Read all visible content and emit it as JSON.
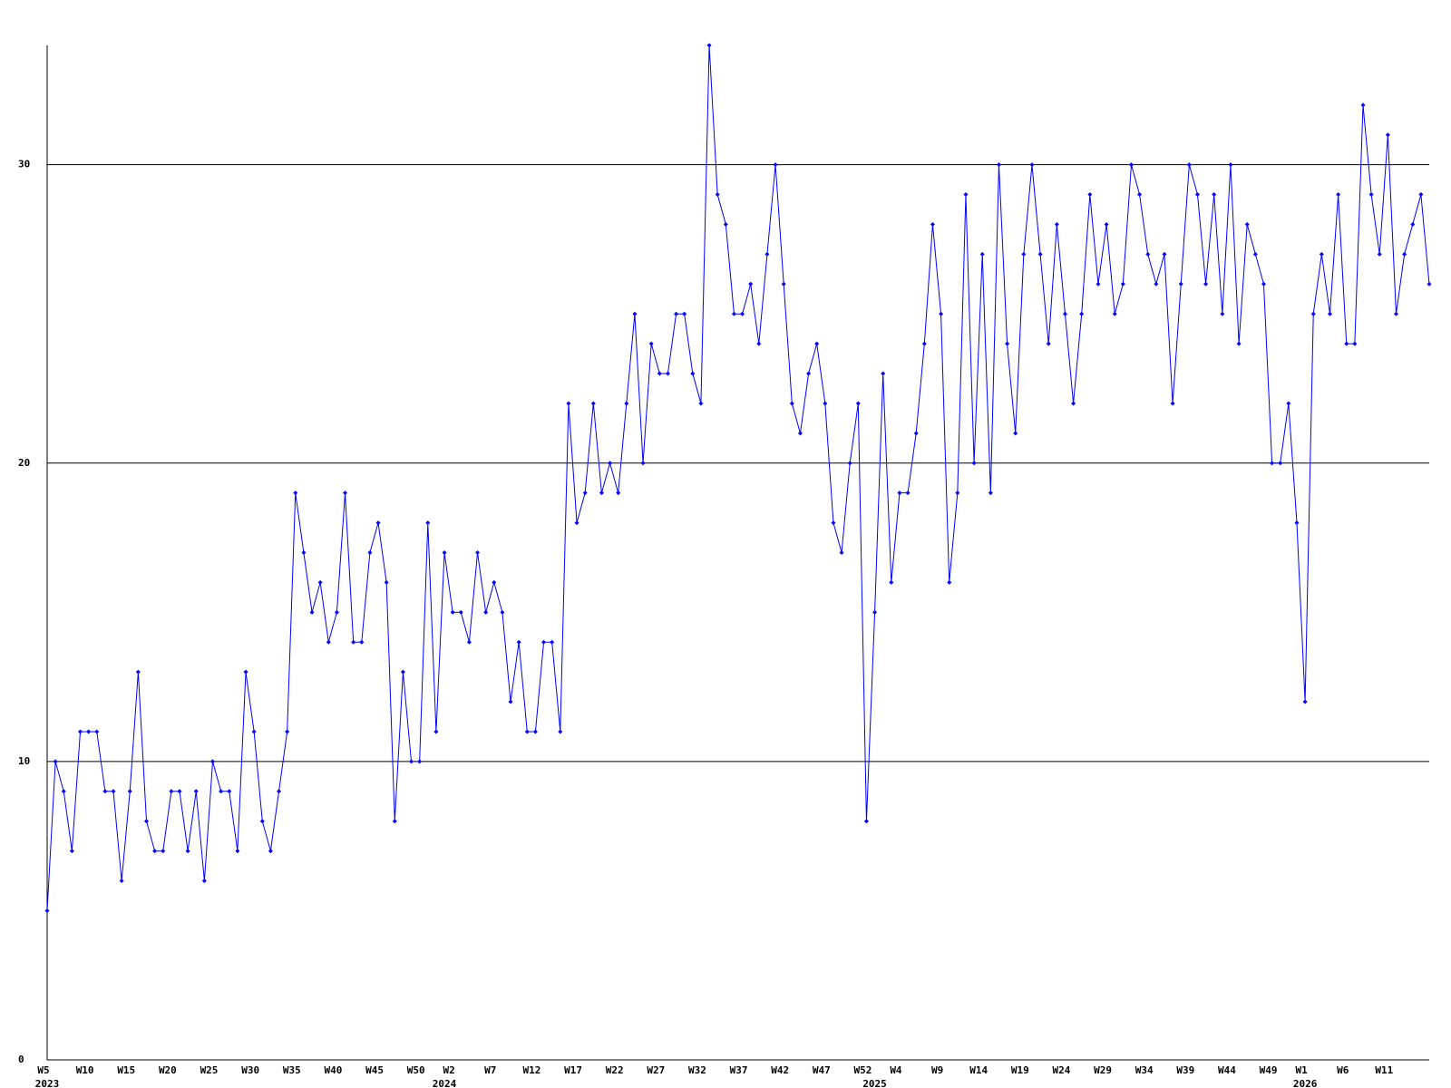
{
  "chart_data": {
    "type": "line",
    "categories": [
      "W5",
      null,
      null,
      null,
      null,
      "W10",
      null,
      null,
      null,
      null,
      "W15",
      null,
      null,
      null,
      null,
      "W20",
      null,
      null,
      null,
      null,
      "W25",
      null,
      null,
      null,
      null,
      "W30",
      null,
      null,
      null,
      null,
      "W35",
      null,
      null,
      null,
      null,
      "W40",
      null,
      null,
      null,
      null,
      "W45",
      null,
      null,
      null,
      null,
      "W50",
      null,
      null,
      null,
      "W2",
      null,
      null,
      null,
      null,
      "W7",
      null,
      null,
      null,
      null,
      "W12",
      null,
      null,
      null,
      null,
      "W17",
      null,
      null,
      null,
      null,
      "W22",
      null,
      null,
      null,
      null,
      "W27",
      null,
      null,
      null,
      null,
      "W32",
      null,
      null,
      null,
      null,
      "W37",
      null,
      null,
      null,
      null,
      "W42",
      null,
      null,
      null,
      null,
      "W47",
      null,
      null,
      null,
      null,
      "W52",
      null,
      null,
      null,
      "W4",
      null,
      null,
      null,
      null,
      "W9",
      null,
      null,
      null,
      null,
      "W14",
      null,
      null,
      null,
      null,
      "W19",
      null,
      null,
      null,
      null,
      "W24",
      null,
      null,
      null,
      null,
      "W29",
      null,
      null,
      null,
      null,
      "W34",
      null,
      null,
      null,
      null,
      "W39",
      null,
      null,
      null,
      null,
      "W44",
      null,
      null,
      null,
      null,
      "W49",
      null,
      null,
      null,
      "W1",
      null,
      null,
      null,
      null,
      "W6",
      null,
      null,
      null,
      null,
      "W11",
      null,
      null,
      null,
      null,
      null
    ],
    "years": [
      "2023",
      null,
      null,
      null,
      null,
      null,
      null,
      null,
      null,
      null,
      null,
      null,
      null,
      null,
      null,
      null,
      null,
      null,
      null,
      null,
      null,
      null,
      null,
      null,
      null,
      null,
      null,
      null,
      null,
      null,
      null,
      null,
      null,
      null,
      null,
      null,
      null,
      null,
      null,
      null,
      null,
      null,
      null,
      null,
      null,
      null,
      null,
      null,
      "2024",
      null,
      null,
      null,
      null,
      null,
      null,
      null,
      null,
      null,
      null,
      null,
      null,
      null,
      null,
      null,
      null,
      null,
      null,
      null,
      null,
      null,
      null,
      null,
      null,
      null,
      null,
      null,
      null,
      null,
      null,
      null,
      null,
      null,
      null,
      null,
      null,
      null,
      null,
      null,
      null,
      null,
      null,
      null,
      null,
      null,
      null,
      null,
      null,
      null,
      null,
      null,
      "2025",
      null,
      null,
      null,
      null,
      null,
      null,
      null,
      null,
      null,
      null,
      null,
      null,
      null,
      null,
      null,
      null,
      null,
      null,
      null,
      null,
      null,
      null,
      null,
      null,
      null,
      null,
      null,
      null,
      null,
      null,
      null,
      null,
      null,
      null,
      null,
      null,
      null,
      null,
      null,
      null,
      null,
      null,
      null,
      null,
      null,
      null,
      null,
      null,
      null,
      null,
      null,
      "2026",
      null,
      null,
      null,
      null,
      null,
      null,
      null,
      null,
      null,
      null,
      null,
      null,
      null,
      null,
      null
    ],
    "series": [
      {
        "color": "#0000ff",
        "values": [
          5,
          10,
          9,
          7,
          11,
          11,
          11,
          9,
          9,
          6,
          9,
          13,
          8,
          7,
          7,
          9,
          9,
          7,
          9,
          6,
          10,
          9,
          9,
          7,
          13,
          11,
          8,
          7,
          9,
          11,
          19,
          17,
          15,
          16,
          14,
          15,
          19,
          14,
          14,
          17,
          18,
          16,
          8,
          13,
          10,
          10,
          18,
          11,
          17,
          15,
          15,
          14,
          17,
          15,
          16,
          15,
          12,
          14,
          11,
          11,
          14,
          14,
          11,
          22,
          18,
          19,
          22,
          19,
          20,
          19,
          22,
          25,
          20,
          24,
          23,
          23,
          25,
          25,
          23,
          22,
          34,
          29,
          28,
          25,
          25,
          26,
          24,
          27,
          30,
          26,
          22,
          21,
          23,
          24,
          22,
          18,
          17,
          20,
          22,
          8,
          15,
          23,
          16,
          19,
          19,
          21,
          24,
          28,
          25,
          16,
          19,
          29,
          20,
          27,
          19,
          30,
          24,
          21,
          27,
          30,
          27,
          24,
          28,
          25,
          22,
          25,
          29,
          26,
          28,
          25,
          26,
          30,
          29,
          27,
          26,
          27,
          22,
          26,
          30,
          29,
          26,
          29,
          25,
          30,
          24,
          28,
          27,
          26,
          20,
          20,
          22,
          18,
          12,
          25,
          27,
          25,
          29,
          24,
          24,
          32,
          29,
          27,
          31,
          25,
          27,
          28,
          29,
          26
        ]
      }
    ],
    "ylim": [
      0,
      34
    ],
    "yticks": [
      0,
      10,
      20,
      30
    ],
    "grid": true
  }
}
